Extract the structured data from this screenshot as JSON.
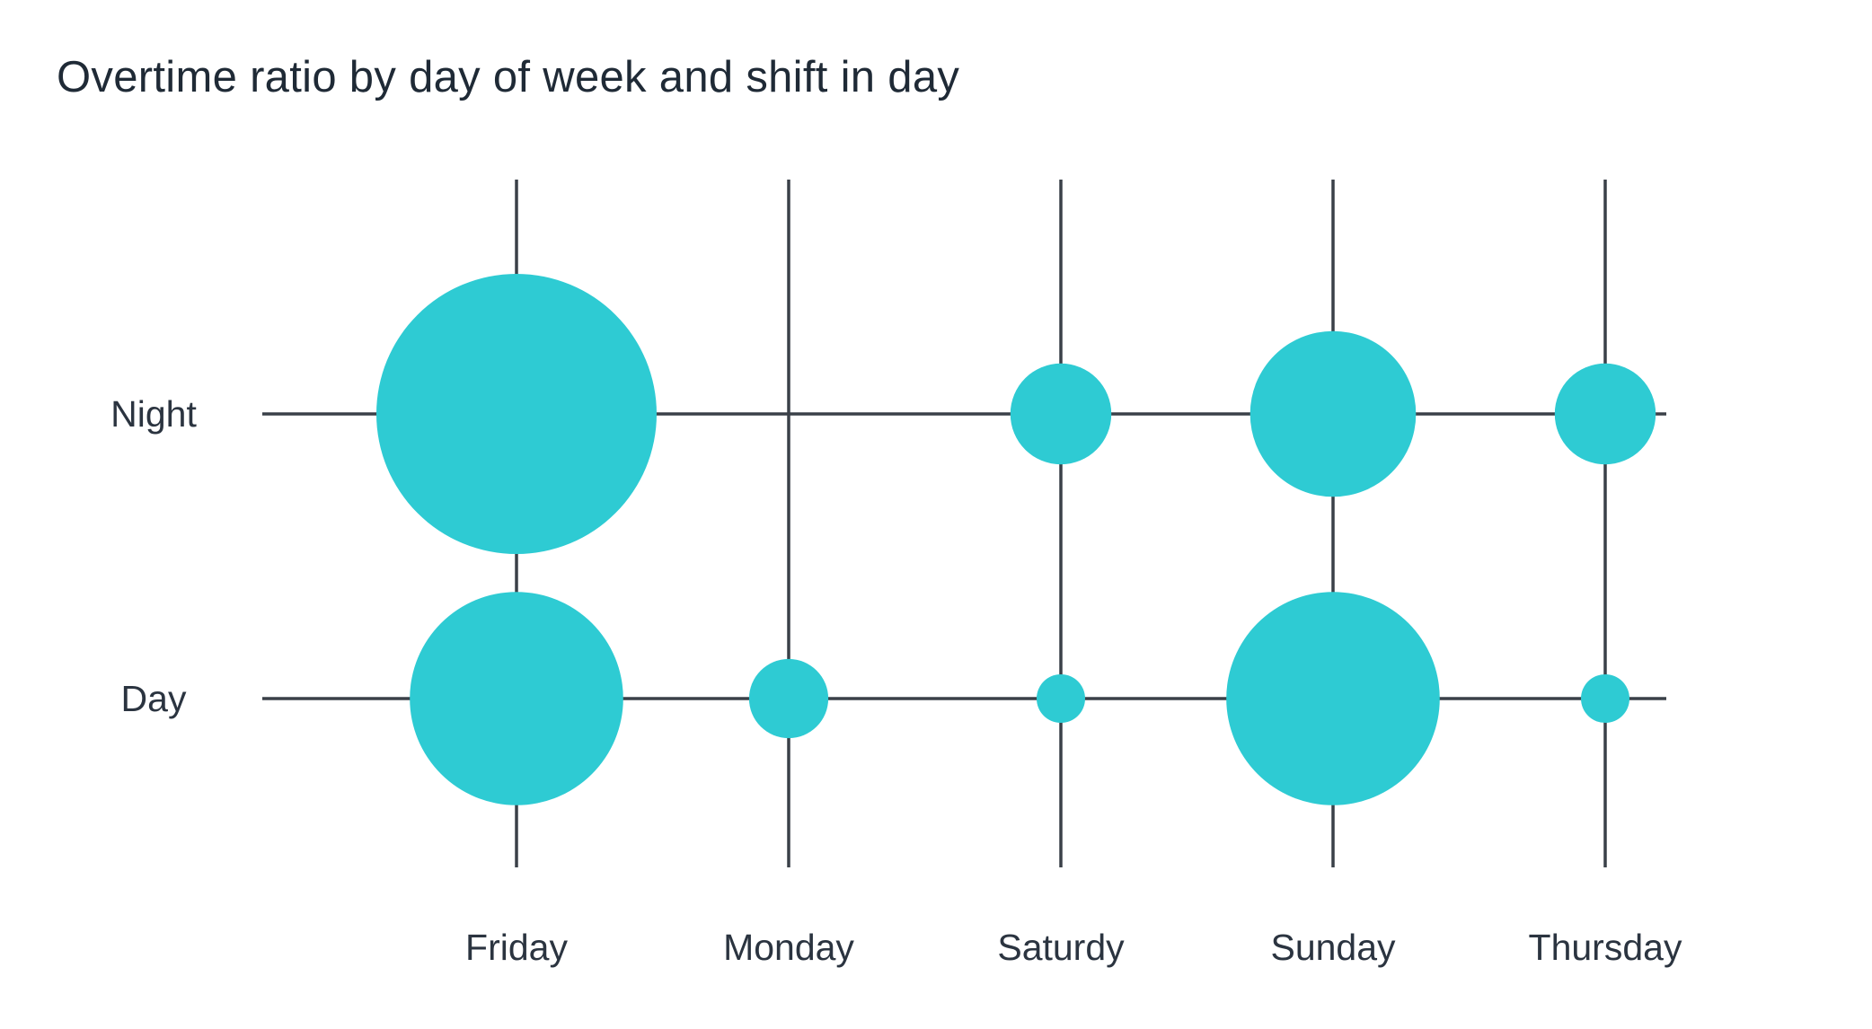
{
  "chart_data": {
    "type": "scatter",
    "title": "Overtime ratio by day of week and shift in day",
    "x_categories": [
      "Friday",
      "Monday",
      "Saturdy",
      "Sunday",
      "Thursday"
    ],
    "y_categories": [
      "Night",
      "Day"
    ],
    "size_max": 1.0,
    "points": [
      {
        "x": "Friday",
        "y": "Night",
        "size": 1.0
      },
      {
        "x": "Saturdy",
        "y": "Night",
        "size": 0.13
      },
      {
        "x": "Sunday",
        "y": "Night",
        "size": 0.35
      },
      {
        "x": "Thursday",
        "y": "Night",
        "size": 0.13
      },
      {
        "x": "Friday",
        "y": "Day",
        "size": 0.58
      },
      {
        "x": "Monday",
        "y": "Day",
        "size": 0.08
      },
      {
        "x": "Saturdy",
        "y": "Day",
        "size": 0.03
      },
      {
        "x": "Sunday",
        "y": "Day",
        "size": 0.58
      },
      {
        "x": "Thursday",
        "y": "Day",
        "size": 0.03
      }
    ],
    "colors": {
      "bubble": "#2ecbd3",
      "axis": "#3a4048",
      "text": "#2b3440"
    },
    "grid": true,
    "legend": "none"
  }
}
